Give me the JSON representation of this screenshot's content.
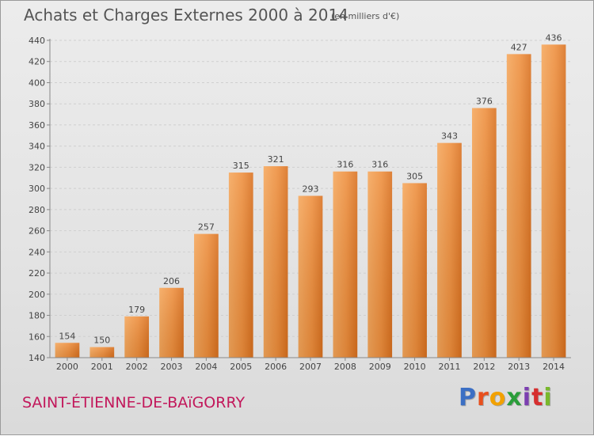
{
  "chart_data": {
    "type": "bar",
    "title": "Achats et Charges Externes 2000 à 2014",
    "unit": "(en milliers d'€)",
    "categories": [
      "2000",
      "2001",
      "2002",
      "2003",
      "2004",
      "2005",
      "2006",
      "2007",
      "2008",
      "2009",
      "2010",
      "2011",
      "2012",
      "2013",
      "2014"
    ],
    "values": [
      154,
      150,
      179,
      206,
      257,
      315,
      321,
      293,
      316,
      316,
      305,
      343,
      376,
      427,
      436
    ],
    "ylim": [
      140,
      440
    ],
    "yticks": [
      140,
      160,
      180,
      200,
      220,
      240,
      260,
      280,
      300,
      320,
      340,
      360,
      380,
      400,
      420,
      440
    ],
    "grid": true,
    "bar_color": "#e8832a"
  },
  "footer": {
    "location": "SAINT-ÉTIENNE-DE-BAïGORRY"
  },
  "logo": {
    "letters": [
      "P",
      "r",
      "o",
      "x",
      "i",
      "t",
      "i"
    ],
    "colors": [
      "#3b6fc4",
      "#e8501e",
      "#f2a100",
      "#2a9d3a",
      "#7b3fb0",
      "#d62f2f",
      "#79b82c"
    ]
  }
}
